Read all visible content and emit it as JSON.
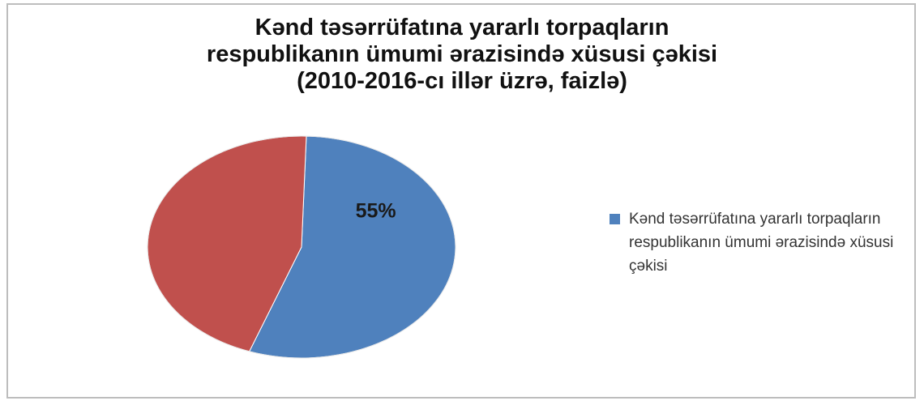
{
  "chart_data": {
    "type": "pie",
    "title_lines": [
      "Kənd təsərrüfatına yararlı torpaqların",
      "respublikanın ümumi ərazisində xüsusi çəkisi",
      "(2010-2016-cı illər üzrə, faizlə)"
    ],
    "slices": [
      {
        "name": "Kənd təsərrüfatına yararlı torpaqların respublikanın ümumi ərazisində xüsusi çəkisi",
        "value": 55,
        "label": "55%",
        "color": "#4f81bd"
      },
      {
        "name": "",
        "value": 45,
        "label": "",
        "color": "#c0504d"
      }
    ],
    "legend": {
      "placement": "right",
      "entries": [
        "Kənd təsərrüfatına yararlı torpaqların respublikanın ümumi ərazisində xüsusi çəkisi"
      ]
    }
  }
}
